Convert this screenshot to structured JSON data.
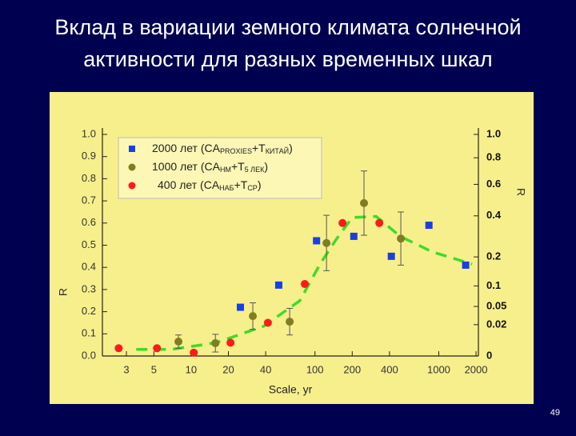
{
  "title": [
    "Вклад в вариации земного климата солнечной",
    "активности для разных временных шкал"
  ],
  "page_number": "49",
  "chart_data": {
    "type": "scatter",
    "x_label": "Scale, yr",
    "y_label": "R",
    "y2_label": "R",
    "xscale": "log",
    "xlim": [
      1.92,
      2090
    ],
    "xticks": [
      3,
      5,
      10,
      20,
      40,
      100,
      200,
      400,
      1000,
      2000
    ],
    "ylim": [
      0,
      1
    ],
    "yticks": [
      {
        "value": 0,
        "label": "0.0"
      },
      0.1,
      0.2,
      0.3,
      0.4,
      0.5,
      0.6,
      0.7,
      0.8,
      0.9,
      {
        "value": 1,
        "label": "1.0"
      }
    ],
    "y2scale": "sqrt",
    "y2lim": [
      0,
      1
    ],
    "y2ticks": [
      {
        "value": 1,
        "label": "1.0"
      },
      0.8,
      0.6,
      0.4,
      0.2,
      0.1,
      0.05,
      0.02,
      0
    ],
    "legend": "upper left",
    "series": [
      {
        "name": [
          "2000 лет (CA",
          "PROXIES",
          "+T",
          "КИТАЙ",
          ")"
        ],
        "marker": "square",
        "color": "#1a3fe0",
        "x": [
          25,
          51,
          103,
          206,
          414,
          833,
          1650
        ],
        "values": [
          0.22,
          0.32,
          0.52,
          0.54,
          0.45,
          0.59,
          0.41
        ]
      },
      {
        "name": [
          "1000 лет (CA",
          "НМ",
          "+T",
          "5 ЛЕК",
          ")"
        ],
        "marker": "circle",
        "color": "#807d22",
        "x": [
          7.9,
          15.7,
          31.5,
          62.5,
          124,
          249,
          494
        ],
        "values": [
          0.065,
          0.058,
          0.18,
          0.155,
          0.51,
          0.69,
          0.53
        ],
        "errors": [
          0.03,
          0.04,
          0.06,
          0.06,
          0.125,
          0.145,
          0.12
        ]
      },
      {
        "name": [
          "400 лет (CA",
          "НАБ",
          "+T",
          "СР",
          ")"
        ],
        "marker": "circle",
        "color": "#ff1a1a",
        "x": [
          2.6,
          5.3,
          10.5,
          20.8,
          41.7,
          82.8,
          167,
          331
        ],
        "values": [
          0.035,
          0.035,
          0.015,
          0.06,
          0.15,
          0.325,
          0.6,
          0.6
        ]
      }
    ],
    "trend": {
      "color": "#3ddc2a",
      "x": [
        3.6,
        7.0,
        15.9,
        38.8,
        75.6,
        110,
        148,
        200,
        312,
        488,
        884,
        1860
      ],
      "values": [
        0.03,
        0.03,
        0.06,
        0.135,
        0.25,
        0.415,
        0.525,
        0.625,
        0.63,
        0.54,
        0.47,
        0.415
      ]
    }
  }
}
